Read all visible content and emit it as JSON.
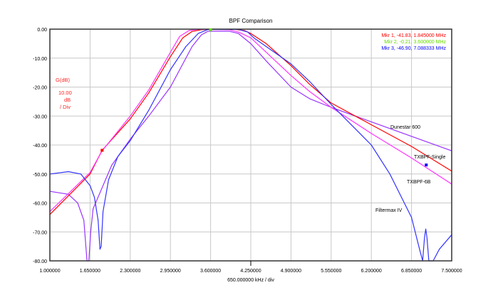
{
  "chart_data": {
    "type": "line",
    "title": "BPF Comparison",
    "xlabel": "650.000000 kHz / div",
    "xlim": [
      1.0,
      7.5
    ],
    "ylim": [
      -80,
      0
    ],
    "grid": true,
    "x_ticks": [
      "1.000000",
      "1.650000",
      "2.300000",
      "2.950000",
      "3.600000",
      "4.250000",
      "4.900000",
      "5.550000",
      "6.200000",
      "6.850000",
      "7.500000"
    ],
    "y_ticks": [
      "0.00",
      "-10.00",
      "-20.00",
      "-30.00",
      "-40.00",
      "-50.00",
      "-60.00",
      "-70.00",
      "-80.00"
    ],
    "y_unit_label": {
      "name": "G(dB)",
      "scale": "10.00",
      "unit": "dB",
      "per": "/ Div"
    },
    "markers": [
      {
        "label": "Mkr 1, -41.83, 1.845000 MHz",
        "x": 1.845,
        "y": -41.83,
        "color": "#ff0000"
      },
      {
        "label": "Mkr 2, -0.21, 3.600000 MHz",
        "x": 3.6,
        "y": -0.21,
        "color": "#66dd00"
      },
      {
        "label": "Mkr 3, -46.90, 7.088333 MHz",
        "x": 7.088333,
        "y": -46.9,
        "color": "#0000ff"
      }
    ],
    "series": [
      {
        "name": "Dunestar 600",
        "color": "#9933ff",
        "x": [
          1.0,
          1.3,
          1.45,
          1.55,
          1.6,
          1.63,
          1.66,
          1.7,
          1.8,
          1.9,
          2.0,
          2.3,
          2.6,
          2.95,
          3.15,
          3.3,
          3.45,
          3.55,
          3.6,
          3.9,
          4.05,
          4.25,
          4.5,
          4.9,
          5.2,
          5.55,
          6.2,
          6.85,
          7.5
        ],
        "y": [
          -56,
          -57,
          -60,
          -66,
          -80,
          -80,
          -70,
          -62,
          -57,
          -52,
          -47,
          -38,
          -30,
          -20,
          -12,
          -6,
          -2,
          -0.8,
          -0.7,
          -0.7,
          -1.5,
          -5,
          -11,
          -20,
          -24,
          -27,
          -32,
          -37,
          -42
        ]
      },
      {
        "name": "TXBPF-Single",
        "color": "#ff0000",
        "x": [
          1.0,
          1.65,
          1.845,
          2.3,
          2.6,
          2.95,
          3.15,
          3.3,
          3.45,
          3.6,
          4.0,
          4.15,
          4.25,
          4.5,
          4.9,
          5.2,
          5.55,
          6.2,
          6.85,
          7.5
        ],
        "y": [
          -64,
          -50,
          -41.83,
          -31,
          -22,
          -9.5,
          -3,
          -0.8,
          -0.2,
          -0.1,
          -0.1,
          -0.5,
          -1.5,
          -5,
          -12.6,
          -19,
          -25.5,
          -33,
          -40.5,
          -49
        ]
      },
      {
        "name": "TXBPF-6B",
        "color": "#ff33ff",
        "x": [
          1.0,
          1.65,
          1.845,
          2.3,
          2.6,
          2.95,
          3.1,
          3.25,
          3.4,
          3.6,
          3.9,
          4.05,
          4.25,
          4.5,
          4.9,
          5.2,
          5.55,
          6.2,
          6.85,
          7.5
        ],
        "y": [
          -63,
          -49.5,
          -42,
          -30,
          -21,
          -8,
          -2.5,
          -0.5,
          -0.1,
          -0.1,
          -0.2,
          -1,
          -3,
          -8,
          -16,
          -21.5,
          -27,
          -36,
          -44.5,
          -53.5
        ]
      },
      {
        "name": "Filtermax IV",
        "color": "#3333ff",
        "x": [
          1.0,
          1.3,
          1.5,
          1.65,
          1.72,
          1.78,
          1.81,
          1.83,
          1.86,
          1.95,
          2.1,
          2.3,
          2.6,
          2.95,
          3.2,
          3.4,
          3.55,
          3.6,
          4.05,
          4.2,
          4.3,
          4.5,
          4.9,
          5.2,
          5.55,
          6.2,
          6.5,
          6.85,
          6.98,
          7.03,
          7.06,
          7.08,
          7.1,
          7.13,
          7.2,
          7.3,
          7.5
        ],
        "y": [
          -50,
          -49.2,
          -50,
          -54,
          -58,
          -66,
          -76,
          -75,
          -63,
          -52,
          -44,
          -38.5,
          -28,
          -14,
          -6,
          -1.5,
          -0.2,
          -0.1,
          -0.1,
          -1,
          -3,
          -6,
          -12,
          -18,
          -26,
          -40,
          -50,
          -65,
          -76,
          -80,
          -72,
          -69,
          -72,
          -80,
          -80,
          -76,
          -71
        ]
      }
    ]
  }
}
